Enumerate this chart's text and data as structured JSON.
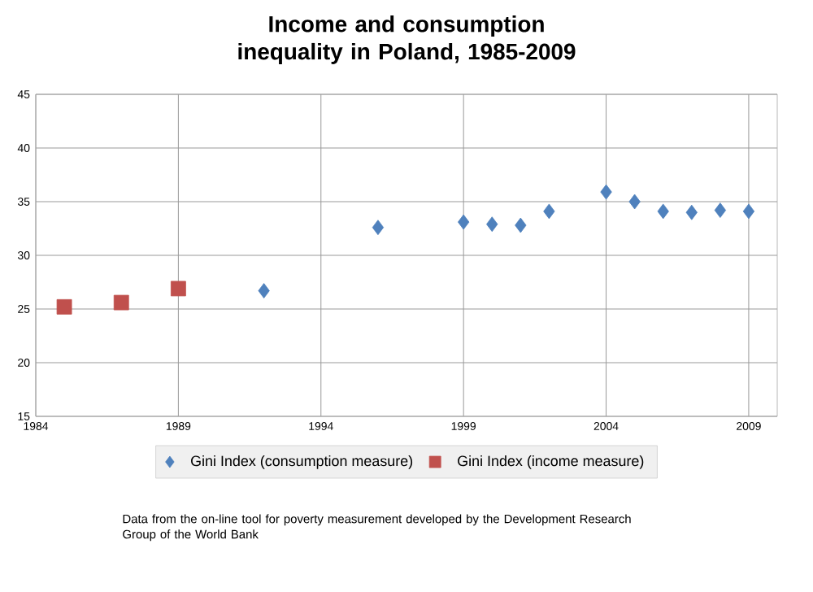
{
  "chart_data": {
    "type": "scatter",
    "title": "Income and consumption inequality in Poland, 1985-2009",
    "series": [
      {
        "name": "Gini Index (consumption measure)",
        "color": "#4f81bd",
        "marker": "diamond",
        "x": [
          1992,
          1996,
          1999,
          2000,
          2001,
          2002,
          2004,
          2005,
          2006,
          2007,
          2008,
          2009
        ],
        "values": [
          26.7,
          32.6,
          33.1,
          32.9,
          32.8,
          34.1,
          35.9,
          35.0,
          34.1,
          34.0,
          34.2,
          34.1
        ]
      },
      {
        "name": "Gini Index (income measure)",
        "color": "#c0504d",
        "marker": "square",
        "x": [
          1985,
          1987,
          1989
        ],
        "values": [
          25.2,
          25.6,
          26.9
        ]
      }
    ],
    "xlim": [
      1984,
      2010
    ],
    "xticks": [
      1984,
      1989,
      1994,
      1999,
      2004,
      2009
    ],
    "ylim": [
      15,
      45
    ],
    "yticks": [
      15,
      20,
      25,
      30,
      35,
      40,
      45
    ],
    "grid": true,
    "legend": "bottom",
    "annotations": [
      "Data from the on-line tool for poverty measurement developed by the Development Research Group of the World Bank"
    ]
  }
}
